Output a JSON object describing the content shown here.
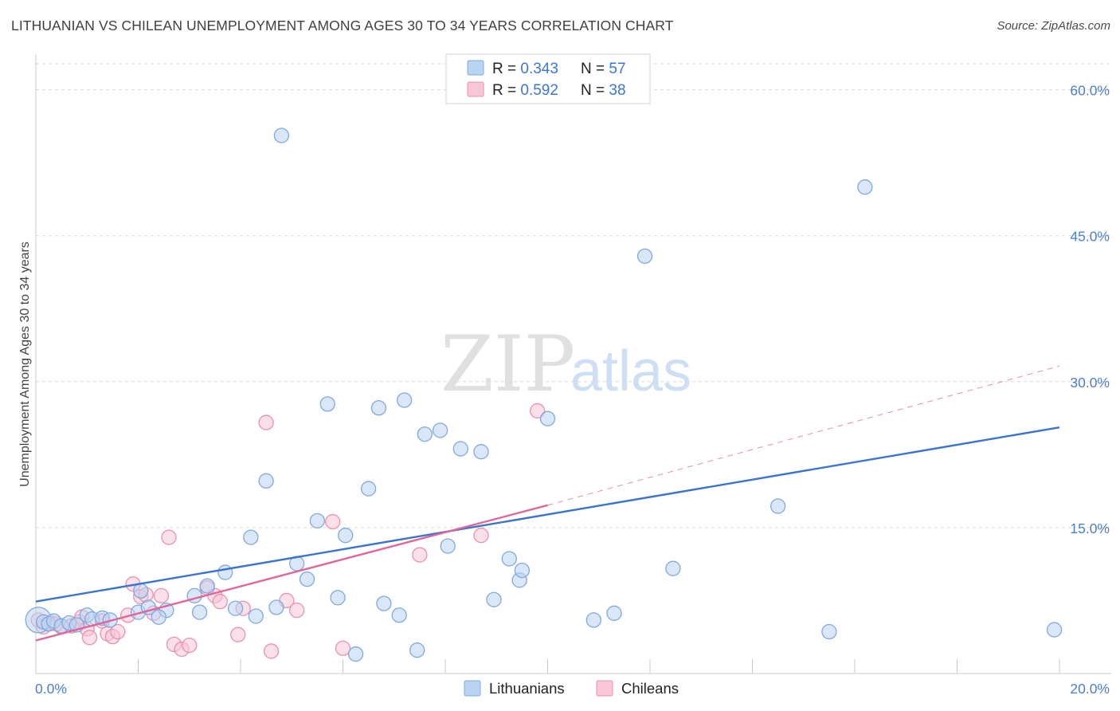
{
  "title": "LITHUANIAN VS CHILEAN UNEMPLOYMENT AMONG AGES 30 TO 34 YEARS CORRELATION CHART",
  "source": "Source: ZipAtlas.com",
  "watermark": {
    "zip": "ZIP",
    "atlas": "atlas"
  },
  "legend": {
    "rows": [
      {
        "r_label": "R = ",
        "r_value": "0.343",
        "n_label": "N = ",
        "n_value": "57"
      },
      {
        "r_label": "R = ",
        "r_value": "0.592",
        "n_label": "N = ",
        "n_value": "38"
      }
    ]
  },
  "colors": {
    "lithuanians_fill": "#b9d3f2",
    "lithuanians_stroke": "#7fa9de",
    "lithuanians_line": "#3a74d0",
    "chileans_fill": "#f8c6d6",
    "chileans_stroke": "#e990b0",
    "chileans_line": "#e0669a",
    "grid": "#d8d8d8",
    "axis_tick": "#4a7fd0"
  },
  "chart_data": {
    "type": "scatter",
    "title": "LITHUANIAN VS CHILEAN UNEMPLOYMENT AMONG AGES 30 TO 34 YEARS CORRELATION CHART",
    "xlabel": "",
    "ylabel": "Unemployment Among Ages 30 to 34 years",
    "xlim": [
      0,
      20
    ],
    "ylim": [
      0,
      63
    ],
    "x_tick_labels": [
      "0.0%",
      "20.0%"
    ],
    "y_ticks": [
      15,
      30,
      45,
      60
    ],
    "y_tick_labels": [
      "15.0%",
      "30.0%",
      "45.0%",
      "60.0%"
    ],
    "grid": true,
    "legend_position": "top-center",
    "series": [
      {
        "name": "Lithuanians",
        "points": [
          [
            0.05,
            5.5
          ],
          [
            0.15,
            5.3
          ],
          [
            0.25,
            5.1
          ],
          [
            0.35,
            5.4
          ],
          [
            0.5,
            4.9
          ],
          [
            0.65,
            5.2
          ],
          [
            0.8,
            5.0
          ],
          [
            1.0,
            6.0
          ],
          [
            1.1,
            5.6
          ],
          [
            1.3,
            5.7
          ],
          [
            1.45,
            5.5
          ],
          [
            2.0,
            6.3
          ],
          [
            2.05,
            8.5
          ],
          [
            2.2,
            6.8
          ],
          [
            2.55,
            6.5
          ],
          [
            2.4,
            5.8
          ],
          [
            3.2,
            6.3
          ],
          [
            3.1,
            8.0
          ],
          [
            3.35,
            9.0
          ],
          [
            3.7,
            10.4
          ],
          [
            3.9,
            6.7
          ],
          [
            4.2,
            14.0
          ],
          [
            4.3,
            5.9
          ],
          [
            4.5,
            19.8
          ],
          [
            4.7,
            6.8
          ],
          [
            4.8,
            55.3
          ],
          [
            5.1,
            11.3
          ],
          [
            5.3,
            9.7
          ],
          [
            5.5,
            15.7
          ],
          [
            5.7,
            27.7
          ],
          [
            5.9,
            7.8
          ],
          [
            6.05,
            14.2
          ],
          [
            6.25,
            2.0
          ],
          [
            6.5,
            19.0
          ],
          [
            6.7,
            27.3
          ],
          [
            6.8,
            7.2
          ],
          [
            7.1,
            6.0
          ],
          [
            7.2,
            28.1
          ],
          [
            7.45,
            2.4
          ],
          [
            7.6,
            24.6
          ],
          [
            7.9,
            25.0
          ],
          [
            8.05,
            13.1
          ],
          [
            8.3,
            23.1
          ],
          [
            8.7,
            22.8
          ],
          [
            8.95,
            7.6
          ],
          [
            9.25,
            11.8
          ],
          [
            9.45,
            9.6
          ],
          [
            9.5,
            10.6
          ],
          [
            10.0,
            26.2
          ],
          [
            10.9,
            5.5
          ],
          [
            11.3,
            6.2
          ],
          [
            11.9,
            42.9
          ],
          [
            12.45,
            10.8
          ],
          [
            14.5,
            17.2
          ],
          [
            15.5,
            4.3
          ],
          [
            16.2,
            50.0
          ],
          [
            19.9,
            4.5
          ]
        ],
        "trend": {
          "x1": 0.0,
          "y1": 7.4,
          "x2": 20.0,
          "y2": 25.3
        }
      },
      {
        "name": "Chileans",
        "points": [
          [
            0.05,
            5.5
          ],
          [
            0.3,
            5.2
          ],
          [
            0.5,
            4.8
          ],
          [
            0.7,
            4.9
          ],
          [
            0.85,
            5.3
          ],
          [
            0.9,
            5.8
          ],
          [
            1.0,
            4.6
          ],
          [
            1.05,
            3.7
          ],
          [
            1.3,
            5.4
          ],
          [
            1.4,
            4.1
          ],
          [
            1.5,
            3.8
          ],
          [
            1.6,
            4.3
          ],
          [
            1.8,
            6.0
          ],
          [
            1.9,
            9.2
          ],
          [
            2.05,
            7.9
          ],
          [
            2.15,
            8.1
          ],
          [
            2.3,
            6.2
          ],
          [
            2.45,
            8.0
          ],
          [
            2.6,
            14.0
          ],
          [
            2.7,
            3.0
          ],
          [
            2.85,
            2.5
          ],
          [
            3.0,
            2.9
          ],
          [
            3.35,
            8.8
          ],
          [
            3.5,
            8.0
          ],
          [
            3.6,
            7.4
          ],
          [
            3.95,
            4.0
          ],
          [
            4.05,
            6.7
          ],
          [
            4.5,
            25.8
          ],
          [
            4.6,
            2.3
          ],
          [
            4.9,
            7.5
          ],
          [
            5.1,
            6.5
          ],
          [
            5.8,
            15.6
          ],
          [
            6.0,
            2.6
          ],
          [
            7.5,
            12.2
          ],
          [
            8.7,
            14.2
          ],
          [
            9.8,
            27.0
          ],
          [
            0.15,
            4.8
          ],
          [
            0.4,
            5.1
          ]
        ],
        "trend": {
          "x1": 0.0,
          "y1": 3.4,
          "x2": 10.0,
          "y2": 17.3
        },
        "trend_extension": {
          "x1": 10.0,
          "y1": 17.3,
          "x2": 20.0,
          "y2": 31.6
        }
      }
    ]
  },
  "bottom_legend": {
    "items": [
      "Lithuanians",
      "Chileans"
    ]
  }
}
